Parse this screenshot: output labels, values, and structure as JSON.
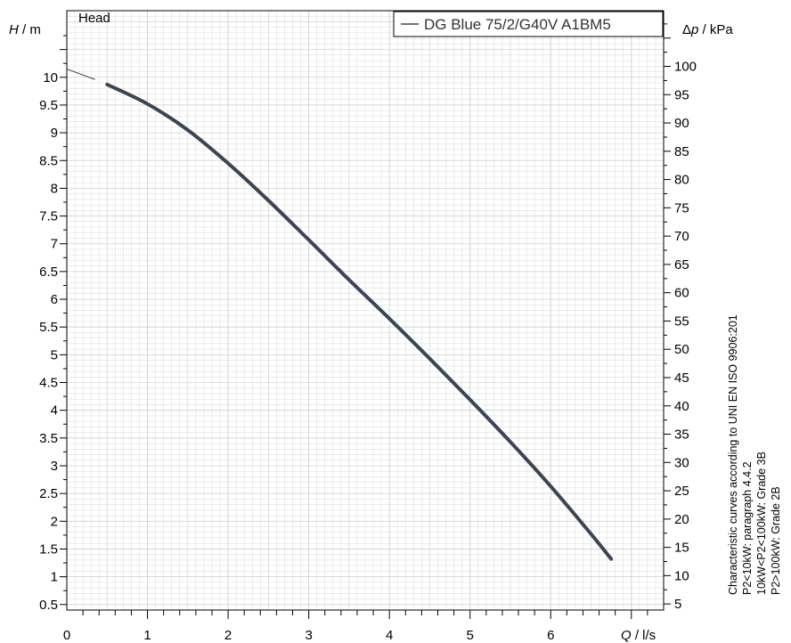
{
  "chart_data": {
    "type": "line",
    "panel_label": "Head",
    "xlabel_var": "Q",
    "xlabel_unit": " / l/s",
    "ylabel_var": "H",
    "ylabel_unit": " / m",
    "y2label_prefix": "Δ",
    "y2label_var": "p",
    "y2label_unit": " / kPa",
    "xlim": [
      0,
      7.4
    ],
    "ylim": [
      0.4,
      11.2
    ],
    "y2lim": [
      3.92,
      109.84
    ],
    "x_ticks": [
      "0",
      "1",
      "2",
      "3",
      "4",
      "5",
      "6"
    ],
    "y_ticks": [
      "0.5",
      "1",
      "1.5",
      "2",
      "2.5",
      "3",
      "3.5",
      "4",
      "4.5",
      "5",
      "5.5",
      "6",
      "6.5",
      "7",
      "7.5",
      "8",
      "8.5",
      "9",
      "9.5",
      "10"
    ],
    "y2_ticks": [
      "5",
      "10",
      "15",
      "20",
      "25",
      "30",
      "35",
      "40",
      "45",
      "50",
      "55",
      "60",
      "65",
      "70",
      "75",
      "80",
      "85",
      "90",
      "95",
      "100"
    ],
    "grid": true,
    "legend": "top-right",
    "colors": {
      "curve": "#3b4654",
      "grid": "#d0d0d0",
      "axis": "#000000"
    },
    "series": [
      {
        "name": "DG Blue 75/2/G40V A1BM5",
        "x": [
          0.5,
          1.0,
          1.5,
          2.0,
          2.5,
          3.0,
          3.5,
          4.0,
          4.5,
          5.0,
          5.5,
          6.0,
          6.5,
          6.75
        ],
        "y": [
          9.87,
          9.52,
          9.05,
          8.45,
          7.78,
          7.07,
          6.35,
          5.65,
          4.93,
          4.19,
          3.43,
          2.63,
          1.77,
          1.32
        ]
      }
    ],
    "extrapolation": {
      "x": [
        0.0,
        0.35
      ],
      "y": [
        10.15,
        9.96
      ]
    },
    "side_notes": [
      "Characteristic curves according to UNI EN ISO 9906:201",
      "P2<10kW:  paragraph 4.4.2",
      "10kW<P2<100kW: Grade 3B",
      "P2>100kW: Grade 2B"
    ]
  }
}
